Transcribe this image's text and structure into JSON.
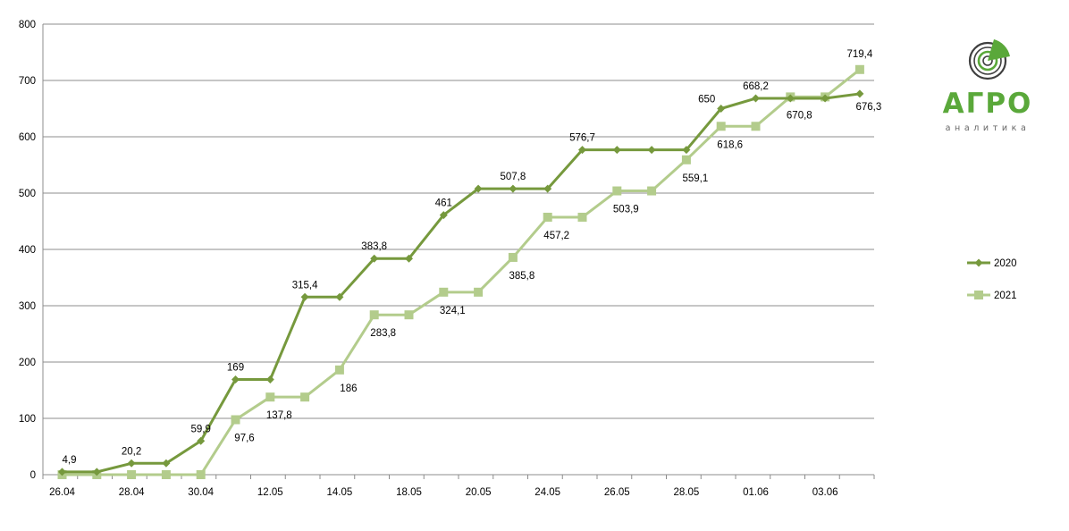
{
  "chart_data": {
    "type": "line",
    "title": "",
    "xlabel": "",
    "ylabel": "",
    "ylim": [
      0,
      800
    ],
    "yticks": [
      0,
      100,
      200,
      300,
      400,
      500,
      600,
      700,
      800
    ],
    "grid": true,
    "legend_position": "right",
    "x_tick_labels": [
      "26.04",
      "28.04",
      "30.04",
      "12.05",
      "14.05",
      "18.05",
      "20.05",
      "24.05",
      "26.05",
      "28.05",
      "01.06",
      "03.06"
    ],
    "series": [
      {
        "name": "2020",
        "color": "#76993d",
        "marker": "diamond",
        "values": [
          4.9,
          4.9,
          20.2,
          20.2,
          59.9,
          169,
          169,
          315.4,
          315.4,
          383.8,
          383.8,
          461,
          507.8,
          507.8,
          507.8,
          576.7,
          576.7,
          576.7,
          576.7,
          650,
          668.2,
          668.2,
          668.2,
          676.3
        ],
        "labels": [
          "4,9",
          "",
          "20,2",
          "",
          "59,9",
          "169",
          "",
          "315,4",
          "",
          "383,8",
          "",
          "461",
          "",
          "507,8",
          "",
          "576,7",
          "",
          "",
          "",
          "650",
          "668,2",
          "",
          "",
          "676,3"
        ]
      },
      {
        "name": "2021",
        "color": "#b3cc8c",
        "marker": "square",
        "values": [
          0,
          0,
          0,
          0,
          0,
          97.6,
          137.8,
          137.8,
          186,
          283.8,
          283.8,
          324.1,
          324.1,
          385.8,
          457.2,
          457.2,
          503.9,
          503.9,
          559.1,
          618.6,
          618.6,
          670.8,
          670.8,
          719.4
        ],
        "labels": [
          "",
          "",
          "",
          "",
          "",
          "97,6",
          "137,8",
          "",
          "186",
          "283,8",
          "",
          "324,1",
          "",
          "385,8",
          "457,2",
          "",
          "503,9",
          "",
          "559,1",
          "618,6",
          "",
          "670,8",
          "",
          "719,4"
        ]
      }
    ]
  },
  "logo": {
    "title": "АГРО",
    "subtitle": "аналитика",
    "icon": "target-arc-logo-icon",
    "color": "#5aa83a"
  }
}
